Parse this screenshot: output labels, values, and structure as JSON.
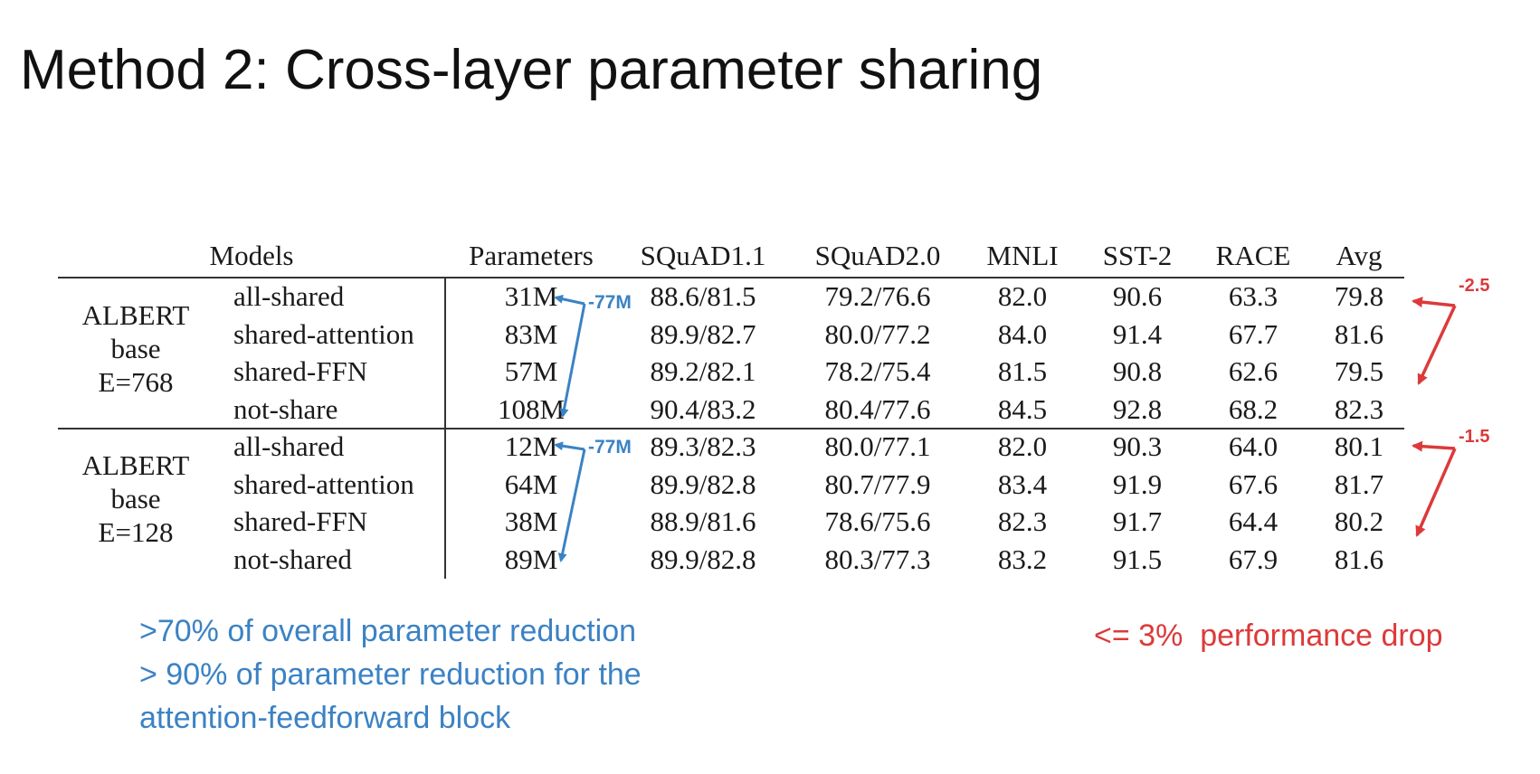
{
  "title": "Method 2: Cross-layer parameter sharing",
  "table": {
    "headers": [
      "Models",
      "Parameters",
      "SQuAD1.1",
      "SQuAD2.0",
      "MNLI",
      "SST-2",
      "RACE",
      "Avg"
    ],
    "groups": [
      {
        "label_lines": [
          "ALBERT",
          "base",
          "E=768"
        ],
        "rows": [
          {
            "model": "all-shared",
            "params": "31M",
            "squad11": "88.6/81.5",
            "squad20": "79.2/76.6",
            "mnli": "82.0",
            "sst2": "90.6",
            "race": "63.3",
            "avg": "79.8"
          },
          {
            "model": "shared-attention",
            "params": "83M",
            "squad11": "89.9/82.7",
            "squad20": "80.0/77.2",
            "mnli": "84.0",
            "sst2": "91.4",
            "race": "67.7",
            "avg": "81.6"
          },
          {
            "model": "shared-FFN",
            "params": "57M",
            "squad11": "89.2/82.1",
            "squad20": "78.2/75.4",
            "mnli": "81.5",
            "sst2": "90.8",
            "race": "62.6",
            "avg": "79.5"
          },
          {
            "model": "not-share",
            "params": "108M",
            "squad11": "90.4/83.2",
            "squad20": "80.4/77.6",
            "mnli": "84.5",
            "sst2": "92.8",
            "race": "68.2",
            "avg": "82.3"
          }
        ]
      },
      {
        "label_lines": [
          "ALBERT",
          "base",
          "E=128"
        ],
        "rows": [
          {
            "model": "all-shared",
            "params": "12M",
            "squad11": "89.3/82.3",
            "squad20": "80.0/77.1",
            "mnli": "82.0",
            "sst2": "90.3",
            "race": "64.0",
            "avg": "80.1"
          },
          {
            "model": "shared-attention",
            "params": "64M",
            "squad11": "89.9/82.8",
            "squad20": "80.7/77.9",
            "mnli": "83.4",
            "sst2": "91.9",
            "race": "67.6",
            "avg": "81.7"
          },
          {
            "model": "shared-FFN",
            "params": "38M",
            "squad11": "88.9/81.6",
            "squad20": "78.6/75.6",
            "mnli": "82.3",
            "sst2": "91.7",
            "race": "64.4",
            "avg": "80.2"
          },
          {
            "model": "not-shared",
            "params": "89M",
            "squad11": "89.9/82.8",
            "squad20": "80.3/77.3",
            "mnli": "83.2",
            "sst2": "91.5",
            "race": "67.9",
            "avg": "81.6"
          }
        ]
      }
    ]
  },
  "annotations": {
    "blue_delta_1": "-77M",
    "blue_delta_2": "-77M",
    "red_delta_1": "-2.5",
    "red_delta_2": "-1.5",
    "blue_color": "#3b82c4",
    "red_color": "#dc3a3a"
  },
  "notes": {
    "blue_lines": [
      ">70% of overall parameter reduction",
      "> 90% of parameter reduction for the",
      "attention-feedforward block"
    ],
    "red": "<= 3%  performance drop"
  }
}
